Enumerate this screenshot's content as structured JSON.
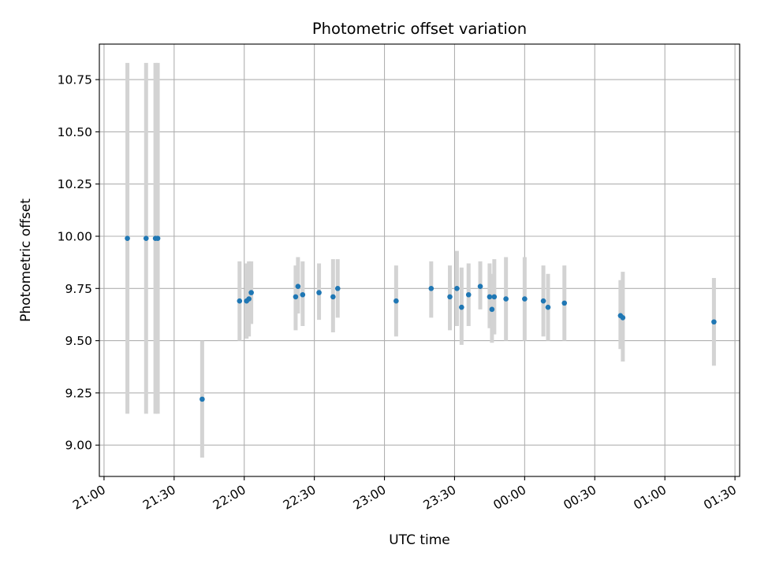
{
  "chart_data": {
    "type": "scatter",
    "title": "Photometric offset variation",
    "xlabel": "UTC time",
    "ylabel": "Photometric offset",
    "x_axis": "time",
    "xlim": [
      "21:00",
      "25:30"
    ],
    "ylim": [
      8.85,
      10.92
    ],
    "grid": true,
    "legend": "none",
    "x_ticks": [
      {
        "t": "21:00",
        "label": "21:00"
      },
      {
        "t": "21:30",
        "label": "21:30"
      },
      {
        "t": "22:00",
        "label": "22:00"
      },
      {
        "t": "22:30",
        "label": "22:30"
      },
      {
        "t": "23:00",
        "label": "23:00"
      },
      {
        "t": "23:30",
        "label": "23:30"
      },
      {
        "t": "24:00",
        "label": "00:00"
      },
      {
        "t": "24:30",
        "label": "00:30"
      },
      {
        "t": "25:00",
        "label": "01:00"
      },
      {
        "t": "25:30",
        "label": "01:30"
      }
    ],
    "y_ticks": [
      "9.00",
      "9.25",
      "9.50",
      "9.75",
      "10.00",
      "10.25",
      "10.50",
      "10.75"
    ],
    "colors": {
      "point": "#1f77b4",
      "error_bar": "#d3d3d3",
      "grid": "#b0b0b0"
    },
    "points": [
      {
        "t": "21:10",
        "y": 9.99,
        "lo": 9.15,
        "hi": 10.83
      },
      {
        "t": "21:18",
        "y": 9.99,
        "lo": 9.15,
        "hi": 10.83
      },
      {
        "t": "21:22",
        "y": 9.99,
        "lo": 9.15,
        "hi": 10.83
      },
      {
        "t": "21:23",
        "y": 9.99,
        "lo": 9.15,
        "hi": 10.83
      },
      {
        "t": "21:42",
        "y": 9.22,
        "lo": 8.94,
        "hi": 9.5
      },
      {
        "t": "21:58",
        "y": 9.69,
        "lo": 9.5,
        "hi": 9.88
      },
      {
        "t": "22:01",
        "y": 9.69,
        "lo": 9.51,
        "hi": 9.87
      },
      {
        "t": "22:02",
        "y": 9.7,
        "lo": 9.52,
        "hi": 9.88
      },
      {
        "t": "22:03",
        "y": 9.73,
        "lo": 9.58,
        "hi": 9.88
      },
      {
        "t": "22:22",
        "y": 9.71,
        "lo": 9.55,
        "hi": 9.86
      },
      {
        "t": "22:23",
        "y": 9.76,
        "lo": 9.63,
        "hi": 9.9
      },
      {
        "t": "22:25",
        "y": 9.72,
        "lo": 9.57,
        "hi": 9.88
      },
      {
        "t": "22:32",
        "y": 9.73,
        "lo": 9.6,
        "hi": 9.87
      },
      {
        "t": "22:38",
        "y": 9.71,
        "lo": 9.54,
        "hi": 9.89
      },
      {
        "t": "22:40",
        "y": 9.75,
        "lo": 9.61,
        "hi": 9.89
      },
      {
        "t": "23:05",
        "y": 9.69,
        "lo": 9.52,
        "hi": 9.86
      },
      {
        "t": "23:20",
        "y": 9.75,
        "lo": 9.61,
        "hi": 9.88
      },
      {
        "t": "23:28",
        "y": 9.71,
        "lo": 9.55,
        "hi": 9.86
      },
      {
        "t": "23:31",
        "y": 9.75,
        "lo": 9.57,
        "hi": 9.93
      },
      {
        "t": "23:33",
        "y": 9.66,
        "lo": 9.48,
        "hi": 9.85
      },
      {
        "t": "23:36",
        "y": 9.72,
        "lo": 9.57,
        "hi": 9.87
      },
      {
        "t": "23:41",
        "y": 9.76,
        "lo": 9.65,
        "hi": 9.88
      },
      {
        "t": "23:45",
        "y": 9.71,
        "lo": 9.56,
        "hi": 9.87
      },
      {
        "t": "23:46",
        "y": 9.65,
        "lo": 9.49,
        "hi": 9.82
      },
      {
        "t": "23:47",
        "y": 9.71,
        "lo": 9.53,
        "hi": 9.89
      },
      {
        "t": "23:52",
        "y": 9.7,
        "lo": 9.5,
        "hi": 9.9
      },
      {
        "t": "24:00",
        "y": 9.7,
        "lo": 9.5,
        "hi": 9.9
      },
      {
        "t": "24:08",
        "y": 9.69,
        "lo": 9.52,
        "hi": 9.86
      },
      {
        "t": "24:10",
        "y": 9.66,
        "lo": 9.5,
        "hi": 9.82
      },
      {
        "t": "24:17",
        "y": 9.68,
        "lo": 9.5,
        "hi": 9.86
      },
      {
        "t": "24:41",
        "y": 9.62,
        "lo": 9.46,
        "hi": 9.79
      },
      {
        "t": "24:42",
        "y": 9.61,
        "lo": 9.4,
        "hi": 9.83
      },
      {
        "t": "25:21",
        "y": 9.59,
        "lo": 9.38,
        "hi": 9.8
      }
    ]
  }
}
